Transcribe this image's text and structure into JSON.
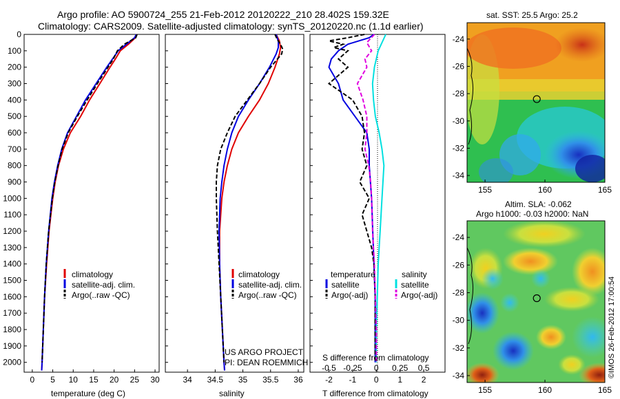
{
  "header": {
    "line1": "Argo profile: AO 5900724_255 21-Feb-2012 20120222_210 28.402S 159.32E",
    "line2": "Climatology: CARS2009. Satellite-adjusted climatology: synTS_20120220.nc (1.1d earlier)"
  },
  "colors": {
    "climatology": "#e00000",
    "satellite": "#0000e0",
    "argo": "#000000",
    "sat_salinity": "#00e0e0",
    "argo_salinity_adj": "#e000e0"
  },
  "credit": "US ARGO PROJECT",
  "pi": "PI: DEAN ROEMMICH",
  "imos_stamp": "©IMOS 26-Feb-2012 17:00:54",
  "chart_data": [
    {
      "type": "line",
      "xlabel": "temperature (deg C)",
      "ylabel": "",
      "xlim": [
        -2,
        31
      ],
      "ylim": [
        2060,
        0
      ],
      "x_ticks": [
        "0",
        "5",
        "10",
        "15",
        "20",
        "25",
        "30"
      ],
      "y_ticks": [
        "0",
        "100",
        "200",
        "300",
        "400",
        "500",
        "600",
        "700",
        "800",
        "900",
        "1000",
        "1100",
        "1200",
        "1300",
        "1400",
        "1500",
        "1600",
        "1700",
        "1800",
        "1900",
        "2000"
      ],
      "legend": [
        "climatology",
        "satellite-adj. clim.",
        "Argo(..raw -QC)"
      ],
      "series": [
        {
          "name": "climatology",
          "depth": [
            0,
            20,
            60,
            100,
            150,
            200,
            300,
            400,
            500,
            600,
            700,
            800,
            900,
            1000,
            1200,
            1400,
            1600,
            1800,
            2000,
            2050
          ],
          "values": [
            25.5,
            25.2,
            23.5,
            21.5,
            20.3,
            19.0,
            16.5,
            14.0,
            11.8,
            9.3,
            7.6,
            6.4,
            5.6,
            5.0,
            4.1,
            3.5,
            3.0,
            2.7,
            2.4,
            2.3
          ]
        },
        {
          "name": "satellite-adj. clim.",
          "depth": [
            0,
            20,
            60,
            100,
            150,
            200,
            300,
            400,
            500,
            600,
            700,
            800,
            900,
            1000,
            1200,
            1400,
            1600,
            1800,
            2000,
            2050
          ],
          "values": [
            25.4,
            25.0,
            23.0,
            21.0,
            19.6,
            18.2,
            15.6,
            13.0,
            10.8,
            8.6,
            7.2,
            6.2,
            5.4,
            4.8,
            4.0,
            3.4,
            3.0,
            2.7,
            2.4,
            2.3
          ]
        },
        {
          "name": "Argo(..raw -QC)",
          "depth": [
            0,
            20,
            60,
            100,
            150,
            200,
            300,
            400,
            500,
            600,
            700,
            800,
            900,
            1000,
            1200,
            1400,
            1600,
            1800,
            2000
          ],
          "values": [
            25.6,
            25.3,
            22.5,
            20.8,
            19.8,
            18.5,
            15.9,
            13.4,
            11.0,
            8.8,
            7.3,
            6.3,
            5.5,
            4.9,
            4.0,
            3.4,
            3.0,
            2.7,
            2.4
          ]
        }
      ]
    },
    {
      "type": "line",
      "xlabel": "salinity",
      "ylabel": "",
      "xlim": [
        33.6,
        36.1
      ],
      "ylim": [
        2060,
        0
      ],
      "x_ticks": [
        "34",
        "34.5",
        "35",
        "35.5",
        "36"
      ],
      "legend": [
        "climatology",
        "satellite-adj. clim.",
        "Argo(..raw -QC)"
      ],
      "series": [
        {
          "name": "climatology",
          "depth": [
            0,
            40,
            80,
            120,
            160,
            200,
            300,
            400,
            500,
            600,
            700,
            800,
            900,
            1000,
            1200,
            1400,
            1600,
            1800,
            2000,
            2050
          ],
          "values": [
            35.6,
            35.66,
            35.68,
            35.66,
            35.62,
            35.58,
            35.46,
            35.3,
            35.1,
            34.92,
            34.8,
            34.72,
            34.66,
            34.62,
            34.58,
            34.58,
            34.6,
            34.63,
            34.66,
            34.67
          ]
        },
        {
          "name": "satellite-adj. clim.",
          "depth": [
            0,
            40,
            80,
            120,
            160,
            200,
            300,
            400,
            500,
            600,
            700,
            800,
            900,
            1000,
            1200,
            1400,
            1600,
            1800,
            2000,
            2050
          ],
          "values": [
            35.6,
            35.64,
            35.64,
            35.6,
            35.54,
            35.48,
            35.3,
            35.1,
            34.92,
            34.8,
            34.72,
            34.66,
            34.62,
            34.59,
            34.57,
            34.58,
            34.6,
            34.63,
            34.66,
            34.67
          ]
        },
        {
          "name": "Argo(..raw -QC)",
          "depth": [
            0,
            30,
            60,
            90,
            120,
            160,
            200,
            300,
            400,
            500,
            600,
            700,
            800,
            900,
            1000,
            1200,
            1400,
            1600,
            1800,
            2000
          ],
          "values": [
            35.58,
            35.62,
            35.68,
            35.72,
            35.7,
            35.6,
            35.5,
            35.3,
            35.08,
            34.86,
            34.72,
            34.6,
            34.54,
            34.52,
            34.52,
            34.54,
            34.57,
            34.6,
            34.63,
            34.66
          ]
        }
      ]
    },
    {
      "type": "line",
      "xlabel": "T difference from climatology",
      "xlabel_top": "S difference from climatology",
      "xlim": [
        -2.8,
        2.9
      ],
      "ylim": [
        2060,
        0
      ],
      "x_ticks": [
        "-2",
        "-1",
        "0",
        "1",
        "2"
      ],
      "x_ticks_top": [
        "-0.5",
        "-0.25",
        "0",
        "0.25",
        "0.5"
      ],
      "legend_temp_title": "temperature",
      "legend_sal_title": "salinity",
      "legend_temp": [
        "satellite",
        "Argo(-adj)"
      ],
      "legend_sal": [
        "satellite",
        "Argo(-adj)"
      ],
      "series": [
        {
          "name": "satellite",
          "group": "temperature",
          "depth": [
            0,
            20,
            60,
            100,
            150,
            200,
            300,
            400,
            500,
            600,
            700,
            800,
            900,
            1000,
            1200,
            1400,
            1600,
            1800,
            2000
          ],
          "values": [
            -0.1,
            -0.3,
            -1.2,
            -1.6,
            -1.9,
            -2.0,
            -1.6,
            -1.4,
            -0.9,
            -0.4,
            -0.3,
            -0.3,
            -0.25,
            -0.2,
            -0.15,
            -0.1,
            -0.05,
            -0.05,
            -0.05
          ]
        },
        {
          "name": "Argo(-adj)",
          "group": "temperature",
          "depth": [
            0,
            20,
            40,
            60,
            80,
            100,
            150,
            200,
            300,
            400,
            500,
            600,
            700,
            800,
            900,
            1000,
            1100,
            1200,
            1300,
            1400,
            1600,
            1800,
            2000
          ],
          "values": [
            -0.5,
            -1.2,
            -2.0,
            -1.4,
            -1.8,
            -1.2,
            -1.6,
            -1.2,
            -2.0,
            -1.0,
            -0.6,
            -0.5,
            -0.6,
            -0.4,
            -0.7,
            -0.3,
            -0.6,
            -0.4,
            -0.2,
            -0.1,
            -0.05,
            -0.05,
            -0.05
          ]
        },
        {
          "name": "satellite",
          "group": "salinity",
          "depth": [
            0,
            100,
            200,
            300,
            400,
            500,
            600,
            700,
            800,
            900,
            1000,
            1200,
            1400,
            1600,
            1800,
            2000
          ],
          "values": [
            0.1,
            0.02,
            -0.02,
            -0.04,
            -0.03,
            -0.01,
            0.03,
            0.06,
            0.08,
            0.07,
            0.06,
            0.04,
            0.02,
            0.01,
            0.0,
            0.0
          ]
        },
        {
          "name": "Argo(-adj)",
          "group": "salinity",
          "depth": [
            0,
            50,
            100,
            150,
            200,
            300,
            400,
            500,
            600,
            700,
            800,
            900,
            1000,
            1200,
            1400,
            1600,
            1800,
            2000
          ],
          "values": [
            -0.02,
            -0.1,
            -0.05,
            -0.12,
            -0.1,
            -0.2,
            -0.14,
            -0.1,
            -0.1,
            -0.12,
            -0.08,
            -0.06,
            -0.05,
            -0.04,
            -0.02,
            -0.01,
            0.0,
            0.0
          ]
        }
      ]
    },
    {
      "type": "heatmap",
      "title": "sat. SST: 25.5  Argo: 25.2",
      "x_ticks": [
        "155",
        "160",
        "165"
      ],
      "y_ticks": [
        "-24",
        "-26",
        "-28",
        "-30",
        "-32",
        "-34"
      ],
      "xlim": [
        153.5,
        165
      ],
      "ylim": [
        -34.5,
        -22.8
      ],
      "argo_position": [
        159.32,
        -28.4
      ]
    },
    {
      "type": "heatmap",
      "title": "Altim. SLA: -0.062",
      "subtitle": "Argo h1000: -0.03  h2000: NaN",
      "x_ticks": [
        "155",
        "160",
        "165"
      ],
      "y_ticks": [
        "-24",
        "-26",
        "-28",
        "-30",
        "-32",
        "-34"
      ],
      "xlim": [
        153.5,
        165
      ],
      "ylim": [
        -34.5,
        -22.8
      ],
      "argo_position": [
        159.32,
        -28.4
      ]
    }
  ]
}
